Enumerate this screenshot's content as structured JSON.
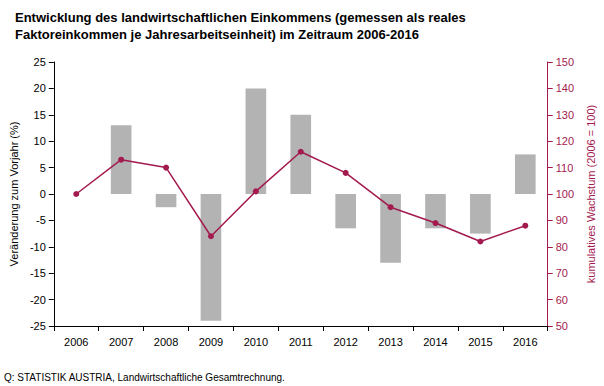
{
  "chart_data": {
    "type": "bar",
    "title": "Entwicklung des landwirtschaftlichen Einkommens (gemessen als reales\nFaktoreinkommen je Jahresarbeitseinheit) im Zeitraum 2006-2016",
    "note": "Q: STATISTIK AUSTRIA, Landwirtschaftliche Gesamtrechnung.",
    "y_label": "Veränderung zum Vorjahr (%)",
    "y2_label": "kumulatives Wachstum (2006 = 100)",
    "categories": [
      "2006",
      "2007",
      "2008",
      "2009",
      "2010",
      "2011",
      "2012",
      "2013",
      "2014",
      "2015",
      "2016"
    ],
    "series": [
      {
        "type": "bar",
        "color": "#b3b3b3",
        "values": [
          null,
          13,
          -2.5,
          -24,
          20,
          15,
          -6.5,
          -13,
          -6.5,
          -7.5,
          7.5
        ]
      },
      {
        "type": "line",
        "axis": "y2",
        "color": "#a31a4f",
        "marker": "circle",
        "line_style": "solid",
        "values": [
          100,
          113,
          110,
          84,
          101,
          116,
          108,
          95,
          89,
          82,
          88
        ]
      }
    ],
    "ylim": [
      -25,
      25
    ],
    "yticks": [
      -25,
      -20,
      -15,
      -10,
      -5,
      0,
      5,
      10,
      15,
      20,
      25
    ],
    "y2lim": [
      50,
      150
    ],
    "y2ticks": [
      50,
      60,
      70,
      80,
      90,
      100,
      110,
      120,
      130,
      140,
      150
    ],
    "grid": false
  }
}
